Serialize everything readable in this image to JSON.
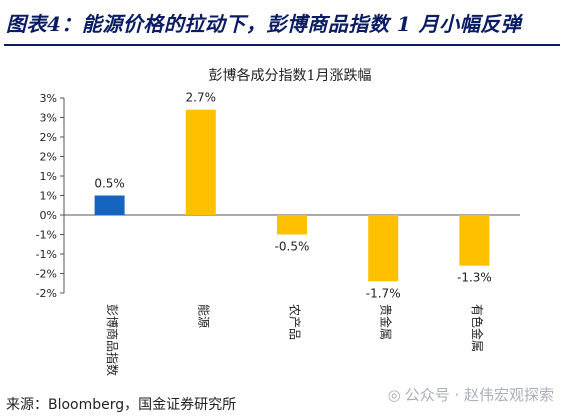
{
  "page_title": "图表4：能源价格的拉动下，彭博商品指数 1 月小幅反弹",
  "source": "来源：Bloomberg，国金证券研究所",
  "watermark": "公众号 · 赵伟宏观探索",
  "watermark_icon": "wechat-icon",
  "chart_data": {
    "type": "bar",
    "title": "彭博各成分指数1月涨跌幅",
    "categories": [
      "彭博商品指数",
      "能源",
      "农产品",
      "贵金属",
      "有色金属"
    ],
    "values": [
      0.5,
      2.7,
      -0.5,
      -1.7,
      -1.3
    ],
    "data_labels": [
      "0.5%",
      "2.7%",
      "-0.5%",
      "-1.7%",
      "-1.3%"
    ],
    "colors": [
      "#1565c0",
      "#ffc000",
      "#ffc000",
      "#ffc000",
      "#ffc000"
    ],
    "y_ticks": [
      {
        "value": 3.0,
        "label": "3%"
      },
      {
        "value": 2.5,
        "label": "3%"
      },
      {
        "value": 2.0,
        "label": "2%"
      },
      {
        "value": 1.5,
        "label": "2%"
      },
      {
        "value": 1.0,
        "label": "1%"
      },
      {
        "value": 0.5,
        "label": "1%"
      },
      {
        "value": 0.0,
        "label": "0%"
      },
      {
        "value": -0.5,
        "label": "-1%"
      },
      {
        "value": -1.0,
        "label": "-1%"
      },
      {
        "value": -1.5,
        "label": "-2%"
      },
      {
        "value": -2.0,
        "label": "-2%"
      }
    ],
    "ylim": [
      -2,
      3
    ],
    "grid": false,
    "legend": "none"
  }
}
